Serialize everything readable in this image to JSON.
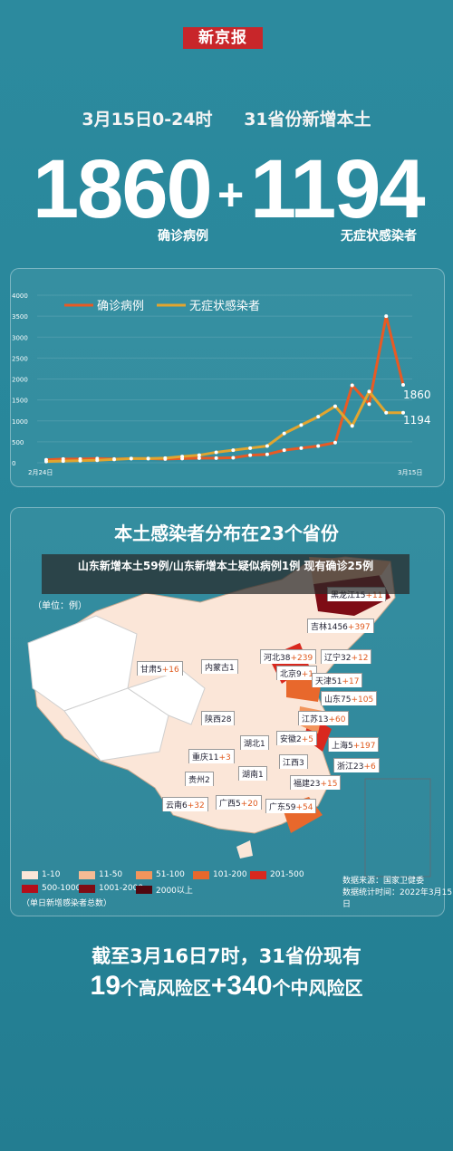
{
  "header": {
    "logo": "新京报",
    "date": "3月15日0-24时",
    "scope": "31省份新增本土"
  },
  "stats": {
    "confirmed": "1860",
    "plus": "+",
    "asymptomatic": "1194",
    "confirmed_label": "确诊病例",
    "asymptomatic_label": "无症状感染者"
  },
  "chart_data": {
    "type": "line",
    "legend": [
      "确诊病例",
      "无症状感染者"
    ],
    "x_start": "2月24日",
    "x_end": "3月15日",
    "y_ticks": [
      "4000",
      "3500",
      "3000",
      "2500",
      "2000",
      "1500",
      "1000",
      "500",
      "0"
    ],
    "ylim": [
      0,
      4000
    ],
    "series": [
      {
        "name": "确诊病例",
        "color": "#e85a24",
        "values": [
          70,
          90,
          90,
          100,
          90,
          100,
          100,
          90,
          100,
          110,
          110,
          120,
          180,
          200,
          300,
          350,
          400,
          480,
          1850,
          1400,
          3500,
          1860
        ]
      },
      {
        "name": "无症状感染者",
        "color": "#e1a52f",
        "values": [
          30,
          40,
          50,
          60,
          80,
          100,
          100,
          110,
          150,
          180,
          250,
          300,
          350,
          400,
          700,
          900,
          1100,
          1350,
          880,
          1700,
          1194,
          1194
        ]
      }
    ],
    "end_labels": {
      "confirmed": "1860",
      "asymptomatic": "1194"
    }
  },
  "map": {
    "title": "本土感染者分布在23个省份",
    "unit": "（单位：例）",
    "overlay_text": "山东新增本土59例/山东新增本土疑似病例1例 现有确诊25例",
    "labels": [
      {
        "name": "黑龙江",
        "base": "15",
        "inc": "+11"
      },
      {
        "name": "吉林",
        "base": "1456",
        "inc": "+397"
      },
      {
        "name": "辽宁",
        "base": "32",
        "inc": "+12"
      },
      {
        "name": "河北",
        "base": "38",
        "inc": "+239"
      },
      {
        "name": "北京",
        "base": "9",
        "inc": "+1"
      },
      {
        "name": "天津",
        "base": "51",
        "inc": "+17"
      },
      {
        "name": "山东",
        "base": "75",
        "inc": "+105"
      },
      {
        "name": "内蒙古",
        "base": "1",
        "inc": ""
      },
      {
        "name": "甘肃",
        "base": "5",
        "inc": "+16"
      },
      {
        "name": "陕西",
        "base": "28",
        "inc": ""
      },
      {
        "name": "江苏",
        "base": "13",
        "inc": "+60"
      },
      {
        "name": "安徽",
        "base": "2",
        "inc": "+5"
      },
      {
        "name": "湖北",
        "base": "1",
        "inc": ""
      },
      {
        "name": "上海",
        "base": "5",
        "inc": "+197"
      },
      {
        "name": "重庆",
        "base": "11",
        "inc": "+3"
      },
      {
        "name": "江西",
        "base": "3",
        "inc": ""
      },
      {
        "name": "浙江",
        "base": "23",
        "inc": "+6"
      },
      {
        "name": "湖南",
        "base": "1",
        "inc": ""
      },
      {
        "name": "贵州",
        "base": "2",
        "inc": ""
      },
      {
        "name": "福建",
        "base": "23",
        "inc": "+15"
      },
      {
        "name": "云南",
        "base": "6",
        "inc": "+32"
      },
      {
        "name": "广西",
        "base": "5",
        "inc": "+20"
      },
      {
        "name": "广东",
        "base": "59",
        "inc": "+54"
      }
    ],
    "legend": [
      {
        "label": "1-10",
        "color": "#fbe6d8"
      },
      {
        "label": "11-50",
        "color": "#f6bb94"
      },
      {
        "label": "51-100",
        "color": "#f2955c"
      },
      {
        "label": "101-200",
        "color": "#e8682c"
      },
      {
        "label": "201-500",
        "color": "#d9281e"
      },
      {
        "label": "500-1000",
        "color": "#b30f1a"
      },
      {
        "label": "1001-2000",
        "color": "#7e0c15"
      },
      {
        "label": "2000以上",
        "color": "#4f0710"
      }
    ],
    "legend_note": "（单日新增感染者总数）",
    "source": "数据来源：国家卫健委",
    "stat_time": "数据统计时间：2022年3月15日"
  },
  "footer": {
    "line1": "截至3月16日7时，31省份现有",
    "high_num": "19",
    "high_label": "个高风险区",
    "plus": "+",
    "mid_num": "340",
    "mid_label": "个中风险区"
  }
}
